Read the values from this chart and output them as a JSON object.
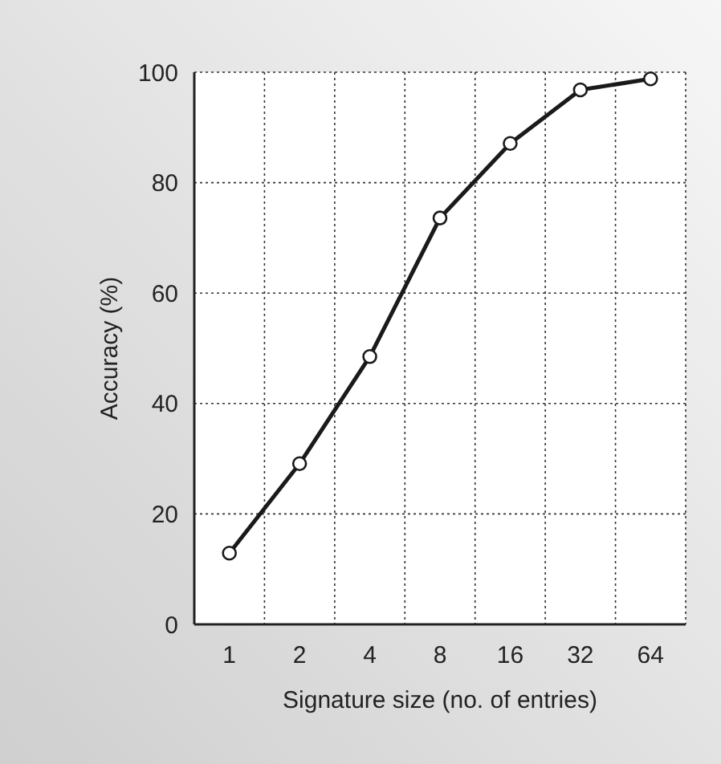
{
  "chart_data": {
    "type": "line",
    "xlabel": "Signature size (no. of entries)",
    "ylabel": "Accuracy (%)",
    "categories": [
      "1",
      "2",
      "4",
      "8",
      "16",
      "32",
      "64"
    ],
    "series": [
      {
        "color": "#1a1a1a",
        "values": [
          12.9,
          29.1,
          48.5,
          73.6,
          87.1,
          96.8,
          98.8
        ]
      }
    ],
    "ylim": [
      0,
      100
    ],
    "yticks": [
      0,
      20,
      40,
      60,
      80,
      100
    ],
    "grid": true,
    "marker": "circle",
    "line_style": "solid"
  }
}
